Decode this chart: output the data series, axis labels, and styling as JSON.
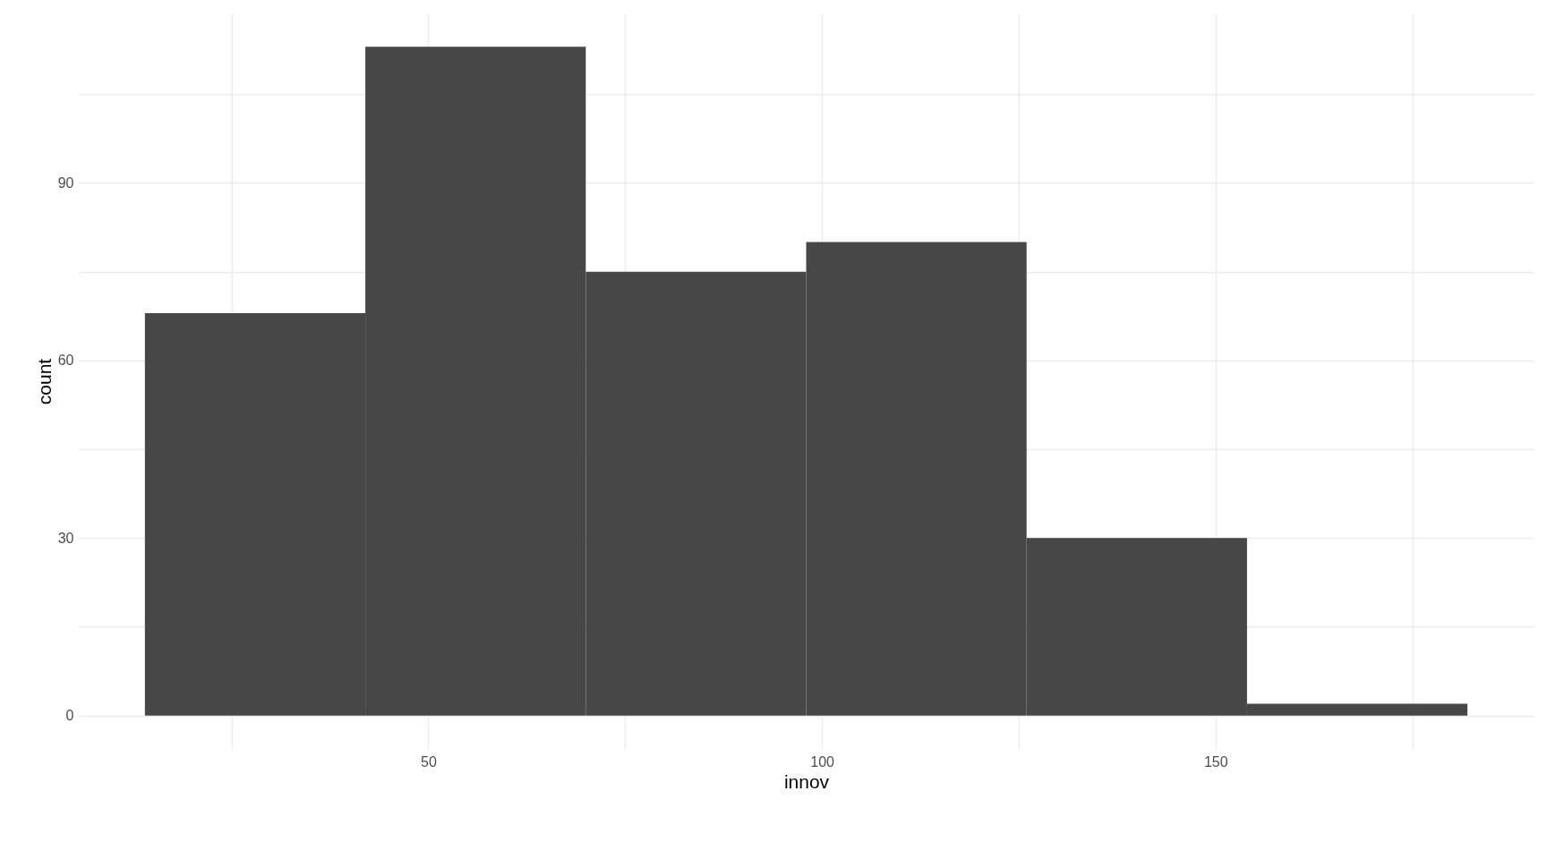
{
  "chart_data": {
    "type": "histogram",
    "xlabel": "innov",
    "ylabel": "count",
    "bins": [
      14,
      42,
      70,
      98,
      126,
      154,
      182
    ],
    "values": [
      68,
      113,
      75,
      80,
      30,
      2
    ],
    "color": "#474747",
    "xlim": [
      5.6,
      190.4
    ],
    "xticks": [
      {
        "value": 25,
        "label": null
      },
      50,
      {
        "value": 75,
        "label": null
      },
      100,
      {
        "value": 125,
        "label": null
      },
      150,
      {
        "value": 175,
        "label": null
      }
    ],
    "ylim": [
      -5.65,
      118.65
    ],
    "yticks": [
      0,
      {
        "value": 15,
        "label": null
      },
      30,
      {
        "value": 45,
        "label": null
      },
      60,
      {
        "value": 75,
        "label": null
      },
      90,
      {
        "value": 105,
        "label": null
      }
    ],
    "grid": true
  }
}
